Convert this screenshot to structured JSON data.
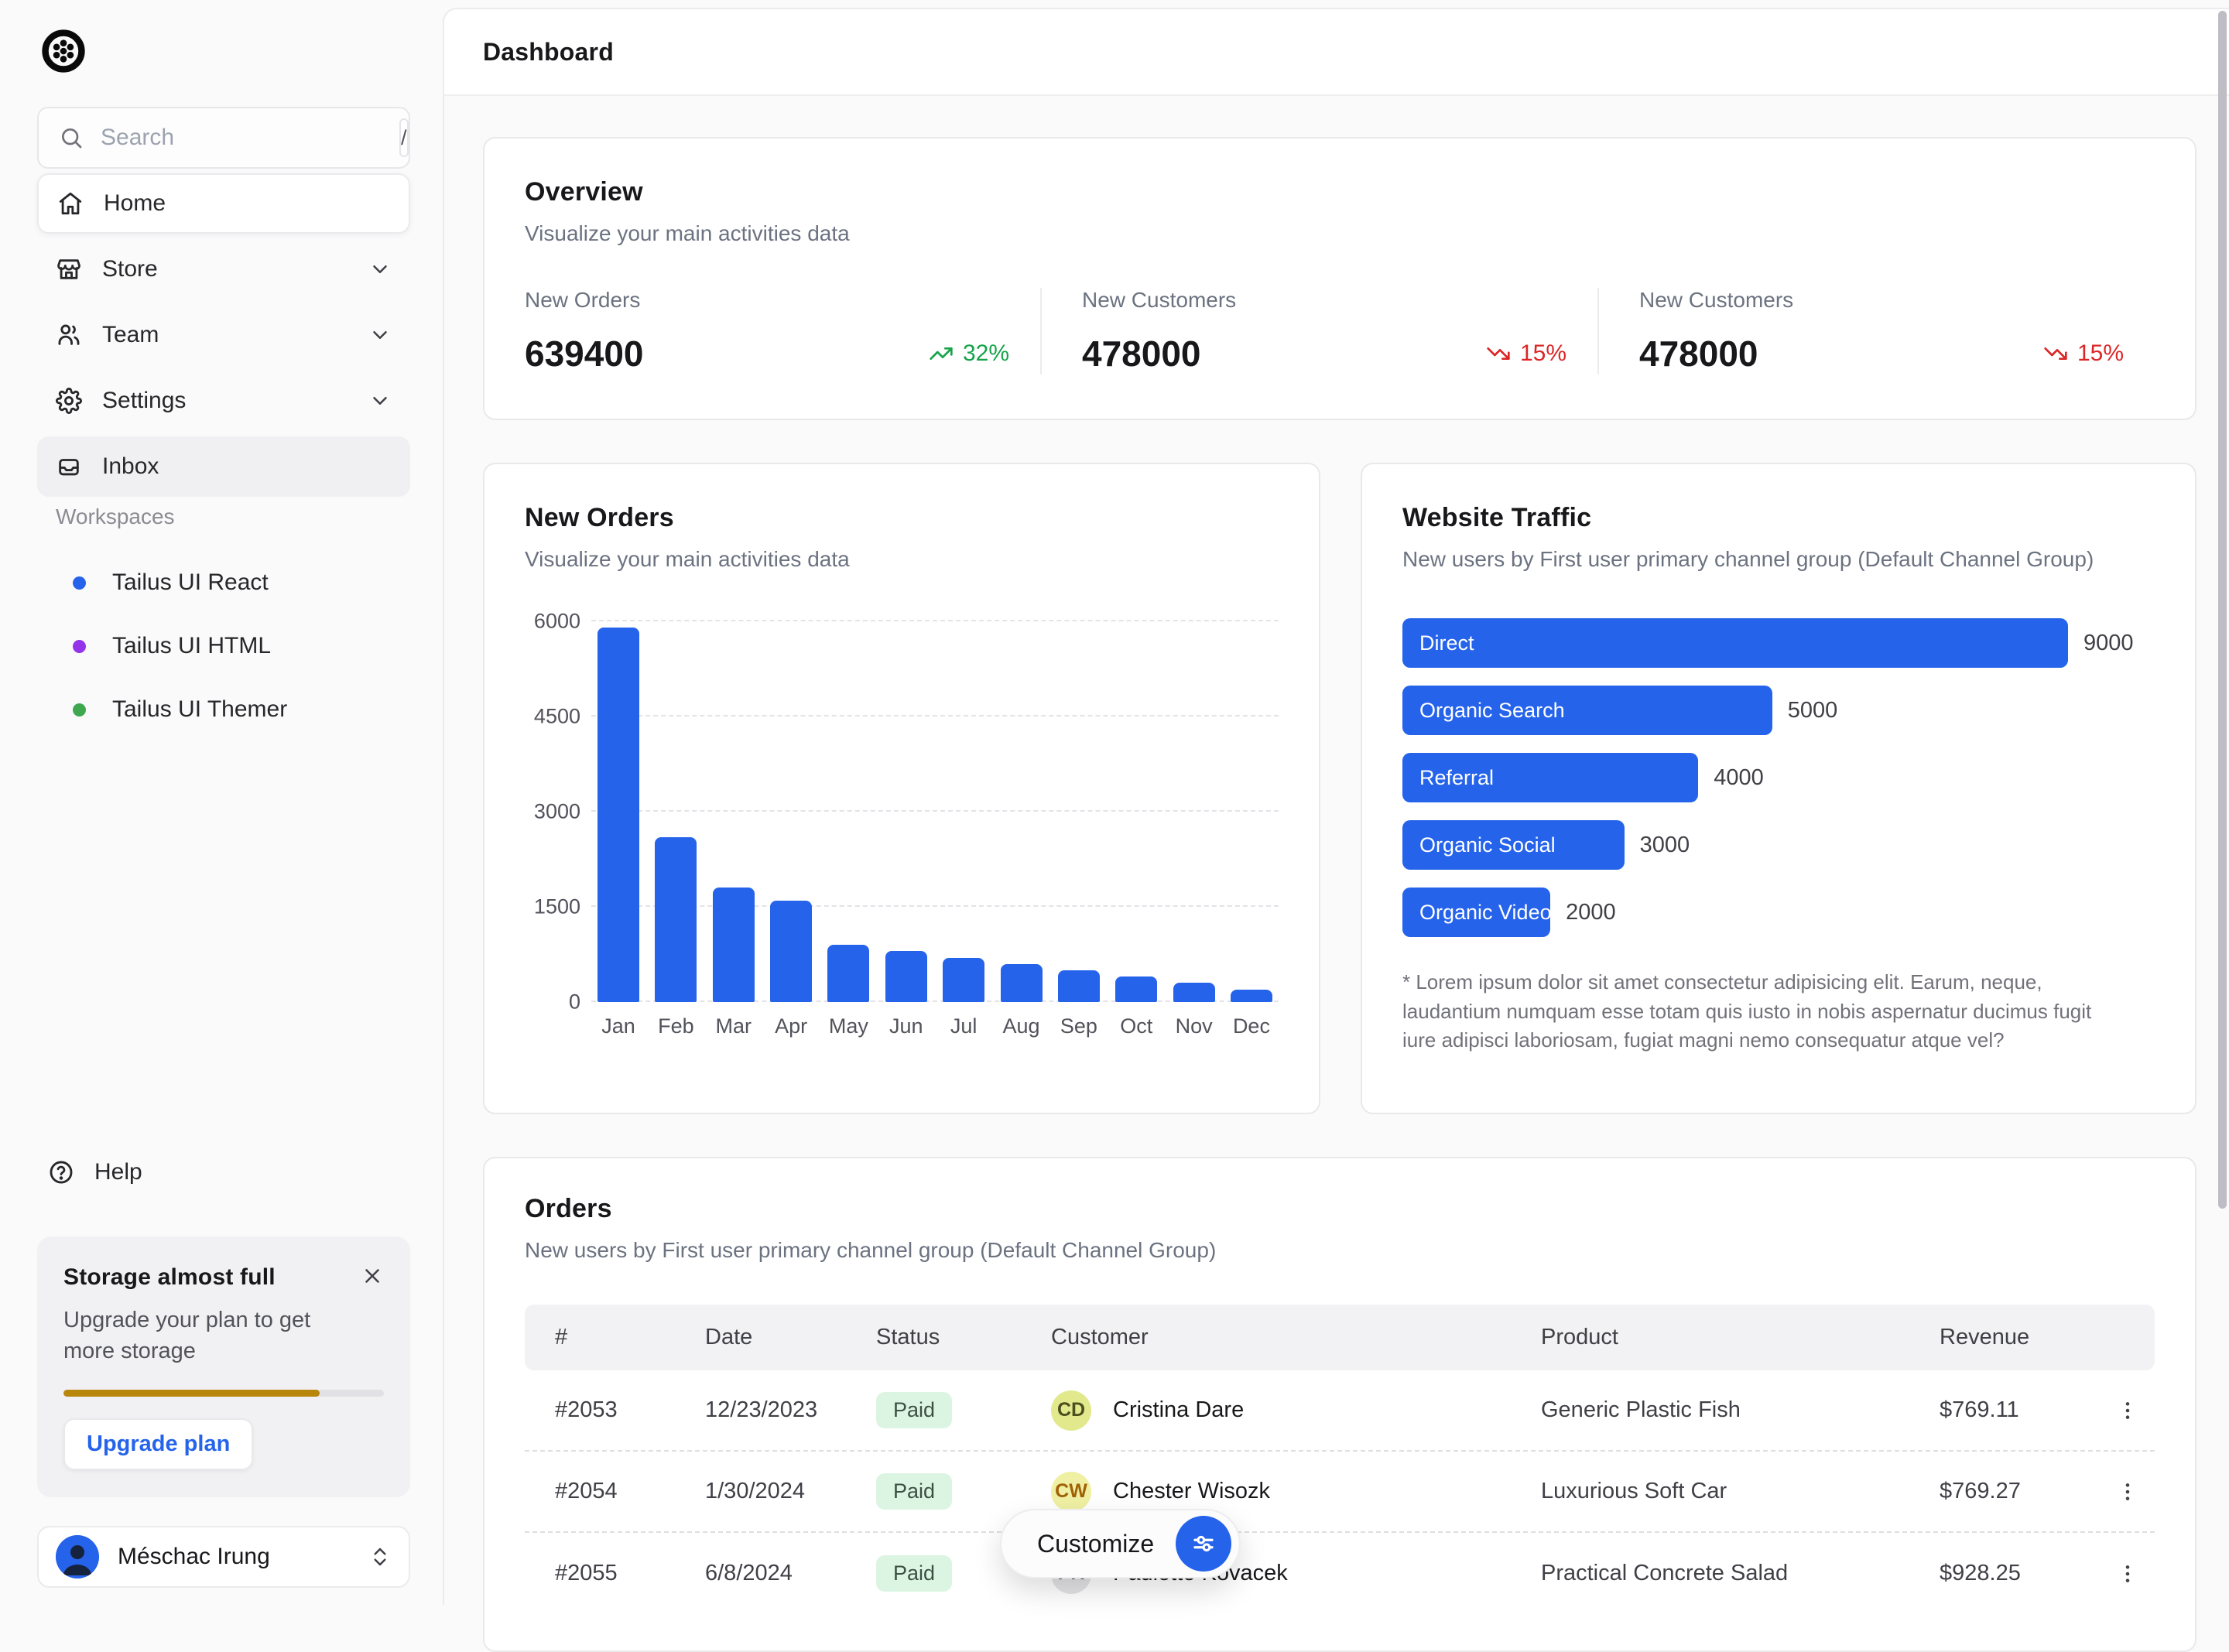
{
  "app": {
    "accent_blue": "#2563eb"
  },
  "sidebar": {
    "search": {
      "placeholder": "Search",
      "shortcut": "/"
    },
    "nav": [
      {
        "label": "Home",
        "icon": "home",
        "active": true
      },
      {
        "label": "Store",
        "icon": "store",
        "expandable": true
      },
      {
        "label": "Team",
        "icon": "team",
        "expandable": true
      },
      {
        "label": "Settings",
        "icon": "settings",
        "expandable": true
      },
      {
        "label": "Inbox",
        "icon": "inbox",
        "highlighted": true
      }
    ],
    "workspaces_label": "Workspaces",
    "workspaces": [
      {
        "name": "Tailus UI React",
        "dot_color": "#2563eb"
      },
      {
        "name": "Tailus UI HTML",
        "dot_color": "#9333ea"
      },
      {
        "name": "Tailus UI Themer",
        "dot_color": "#3fa84f"
      }
    ],
    "help_label": "Help",
    "storage": {
      "title": "Storage almost full",
      "body": "Upgrade your plan to get more storage",
      "progress_pct": 80,
      "progress_color": "#b8860b",
      "button_label": "Upgrade plan"
    },
    "user": {
      "name": "Méschac Irung"
    }
  },
  "header": {
    "title": "Dashboard"
  },
  "overview": {
    "title": "Overview",
    "subtitle": "Visualize your main activities data",
    "stats": [
      {
        "label": "New Orders",
        "value": "639400",
        "delta": "32%",
        "direction": "up"
      },
      {
        "label": "New Customers",
        "value": "478000",
        "delta": "15%",
        "direction": "down"
      },
      {
        "label": "New Customers",
        "value": "478000",
        "delta": "15%",
        "direction": "down"
      }
    ]
  },
  "chart_data": [
    {
      "type": "bar",
      "title": "New Orders",
      "subtitle": "Visualize your main activities data",
      "categories": [
        "Jan",
        "Feb",
        "Mar",
        "Apr",
        "May",
        "Jun",
        "Jul",
        "Aug",
        "Sep",
        "Oct",
        "Nov",
        "Dec"
      ],
      "values": [
        5900,
        2600,
        1800,
        1600,
        900,
        800,
        700,
        600,
        500,
        400,
        300,
        200
      ],
      "xlabel": "",
      "ylabel": "",
      "ylim": [
        0,
        6000
      ],
      "yticks": [
        0,
        1500,
        3000,
        4500,
        6000
      ],
      "grid": "dashed-horizontal",
      "bar_color": "#2563eb",
      "legend": "none"
    },
    {
      "type": "bar-horizontal",
      "title": "Website Traffic",
      "subtitle": "New users by First user primary channel group (Default Channel Group)",
      "categories": [
        "Direct",
        "Organic Search",
        "Referral",
        "Organic Social",
        "Organic Video"
      ],
      "values": [
        9000,
        5000,
        4000,
        3000,
        2000
      ],
      "xmax": 9000,
      "bar_color": "#2563eb",
      "value_labels": true,
      "footnote": "* Lorem ipsum dolor sit amet consectetur adipisicing elit. Earum, neque, laudantium numquam esse totam quis iusto in nobis aspernatur ducimus fugit iure adipisci laboriosam, fugiat magni nemo consequatur atque vel?"
    }
  ],
  "orders": {
    "title": "Orders",
    "subtitle": "New users by First user primary channel group (Default Channel Group)",
    "columns": [
      "#",
      "Date",
      "Status",
      "Customer",
      "Product",
      "Revenue"
    ],
    "rows": [
      {
        "id": "#2053",
        "date": "12/23/2023",
        "status": "Paid",
        "customer": "Cristina Dare",
        "initials": "CD",
        "avatar_bg": "#e2e98d",
        "avatar_fg": "#4a4f1d",
        "product": "Generic Plastic Fish",
        "revenue": "$769.11"
      },
      {
        "id": "#2054",
        "date": "1/30/2024",
        "status": "Paid",
        "customer": "Chester Wisozk",
        "initials": "CW",
        "avatar_bg": "#eff0a3",
        "avatar_fg": "#a16207",
        "product": "Luxurious Soft Car",
        "revenue": "$769.27"
      },
      {
        "id": "#2055",
        "date": "6/8/2024",
        "status": "Paid",
        "customer": "Paulette Kovacek",
        "initials": "PK",
        "avatar_bg": "#e4e4e7",
        "avatar_fg": "#3f3f46",
        "product": "Practical Concrete Salad",
        "revenue": "$928.25"
      }
    ]
  },
  "customize": {
    "label": "Customize"
  }
}
